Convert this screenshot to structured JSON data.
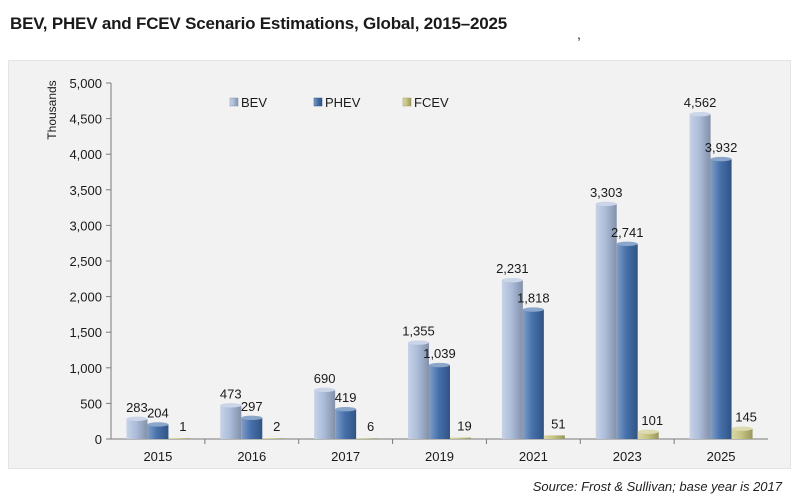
{
  "title": "BEV, PHEV and FCEV Scenario Estimations, Global, 2015–2025",
  "stray_mark": ",",
  "source": "Source: Frost & Sullivan; base year is 2017",
  "colors": {
    "BEV": "#a8b9d8",
    "PHEV": "#3d6aa8",
    "FCEV": "#c4c27a",
    "panel": "#f2f2f2"
  },
  "chart_data": {
    "type": "bar",
    "categories": [
      "2015",
      "2016",
      "2017",
      "2019",
      "2021",
      "2023",
      "2025"
    ],
    "series": [
      {
        "name": "BEV",
        "values": [
          283,
          473,
          690,
          1355,
          2231,
          3303,
          4562
        ]
      },
      {
        "name": "PHEV",
        "values": [
          204,
          297,
          419,
          1039,
          1818,
          2741,
          3932
        ]
      },
      {
        "name": "FCEV",
        "values": [
          1,
          2,
          6,
          19,
          51,
          101,
          145
        ]
      }
    ],
    "value_labels": [
      [
        "283",
        "473",
        "690",
        "1,355",
        "2,231",
        "3,303",
        "4,562"
      ],
      [
        "204",
        "297",
        "419",
        "1,039",
        "1,818",
        "2,741",
        "3,932"
      ],
      [
        "1",
        "2",
        "6",
        "19",
        "51",
        "101",
        "145"
      ]
    ],
    "title": "BEV, PHEV and FCEV Scenario Estimations, Global, 2015–2025",
    "xlabel": "",
    "ylabel": "Thousands",
    "ylim": [
      0,
      5000
    ],
    "yticks": [
      0,
      500,
      1000,
      1500,
      2000,
      2500,
      3000,
      3500,
      4000,
      4500,
      5000
    ],
    "ytick_labels": [
      "0",
      "500",
      "1,000",
      "1,500",
      "2,000",
      "2,500",
      "3,000",
      "3,500",
      "4,000",
      "4,500",
      "5,000"
    ],
    "grid": false,
    "legend_position": "top-left"
  }
}
